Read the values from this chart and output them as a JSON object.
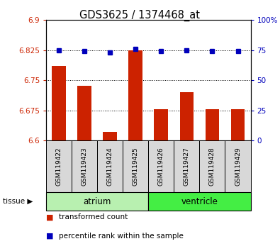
{
  "title": "GDS3625 / 1374468_at",
  "samples": [
    "GSM119422",
    "GSM119423",
    "GSM119424",
    "GSM119425",
    "GSM119426",
    "GSM119427",
    "GSM119428",
    "GSM119429"
  ],
  "transformed_counts": [
    6.785,
    6.737,
    6.622,
    6.825,
    6.678,
    6.72,
    6.678,
    6.678
  ],
  "percentile_ranks": [
    75,
    74,
    73,
    76,
    74,
    75,
    74,
    74
  ],
  "ylim_left": [
    6.6,
    6.9
  ],
  "ylim_right": [
    0,
    100
  ],
  "yticks_left": [
    6.6,
    6.675,
    6.75,
    6.825,
    6.9
  ],
  "yticks_right": [
    0,
    25,
    50,
    75,
    100
  ],
  "yticklabels_left": [
    "6.6",
    "6.675",
    "6.75",
    "6.825",
    "6.9"
  ],
  "yticklabels_right": [
    "0",
    "25",
    "50",
    "75",
    "100%"
  ],
  "groups": [
    {
      "label": "atrium",
      "start": 0,
      "end": 3,
      "color": "#b8f0b0"
    },
    {
      "label": "ventricle",
      "start": 4,
      "end": 7,
      "color": "#44ee44"
    }
  ],
  "bar_color": "#cc2200",
  "dot_color": "#0000bb",
  "bar_bottom": 6.6,
  "background_color": "#d8d8d8",
  "legend_items": [
    {
      "label": "transformed count",
      "color": "#cc2200",
      "marker": "s"
    },
    {
      "label": "percentile rank within the sample",
      "color": "#0000bb",
      "marker": "s"
    }
  ]
}
